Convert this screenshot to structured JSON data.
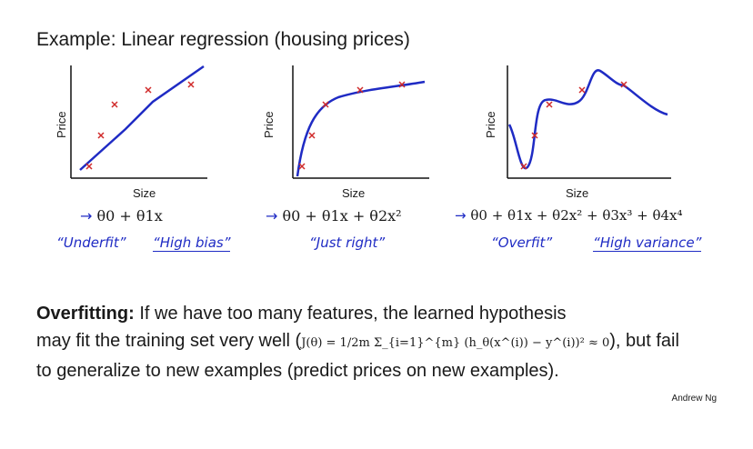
{
  "title": "Example: Linear regression (housing prices)",
  "axes": {
    "x_label": "Size",
    "y_label": "Price"
  },
  "plots": [
    {
      "formula": "θ0 + θ1x",
      "arrow": "→",
      "notes": [
        "“Underfit”",
        "“High bias”"
      ]
    },
    {
      "formula": "θ0 + θ1x + θ2x²",
      "arrow": "→",
      "notes": [
        "“Just right”"
      ]
    },
    {
      "formula": "θ0 + θ1x + θ2x² + θ3x³ + θ4x⁴",
      "arrow": "→",
      "notes": [
        "“Overfit”",
        "“High variance”"
      ]
    }
  ],
  "paragraph": {
    "bold": "Overfitting:",
    "line1_rest": " If we have too many features, the learned hypothesis",
    "line2_pre": "may fit the training set very well (",
    "equation": "J(θ) = 1/2m Σ_{i=1}^{m} (h_θ(x^(i)) − y^(i))² ≈ 0",
    "line2_post": "), but fail",
    "line3": "to generalize to new examples (predict prices on new examples)."
  },
  "author": "Andrew Ng",
  "colors": {
    "curve": "#1f2bc4",
    "points": "#d02a2a",
    "axes": "#111111"
  }
}
